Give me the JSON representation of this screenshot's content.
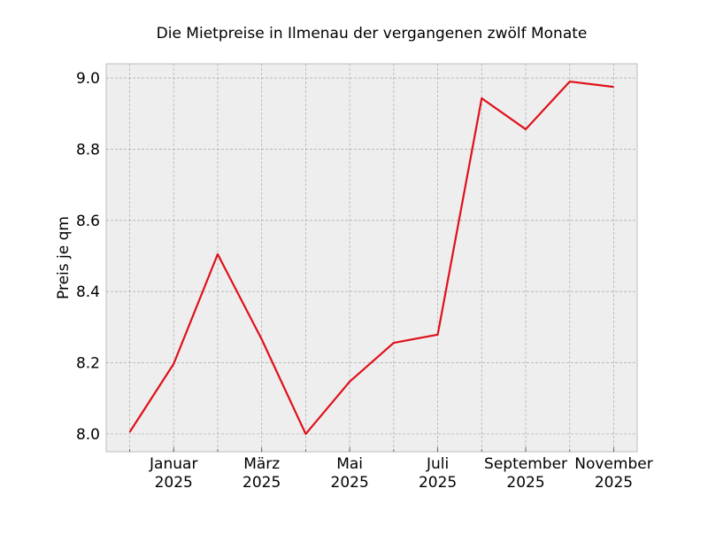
{
  "chart_data": {
    "type": "line",
    "title": "Die Mietpreise in Ilmenau der vergangenen zwölf Monate",
    "xlabel": "",
    "ylabel": "Preis je qm",
    "x": [
      "2024-12",
      "2025-01",
      "2025-02",
      "2025-03",
      "2025-04",
      "2025-05",
      "2025-06",
      "2025-07",
      "2025-08",
      "2025-09",
      "2025-10",
      "2025-11"
    ],
    "series": [
      {
        "values": [
          8.005,
          8.197,
          8.505,
          8.266,
          8.0,
          8.147,
          8.256,
          8.279,
          8.943,
          8.856,
          8.99,
          8.975
        ],
        "color": "#e0101a"
      }
    ],
    "xticks": [
      {
        "x": "2025-01",
        "label": [
          "Januar",
          "2025"
        ]
      },
      {
        "x": "2025-03",
        "label": [
          "März",
          "2025"
        ]
      },
      {
        "x": "2025-05",
        "label": [
          "Mai",
          "2025"
        ]
      },
      {
        "x": "2025-07",
        "label": [
          "Juli",
          "2025"
        ]
      },
      {
        "x": "2025-09",
        "label": [
          "September",
          "2025"
        ]
      },
      {
        "x": "2025-11",
        "label": [
          "November",
          "2025"
        ]
      }
    ],
    "yticks": [
      "8.0",
      "8.2",
      "8.4",
      "8.6",
      "8.8",
      "9.0"
    ],
    "ylim": [
      7.95,
      9.04
    ],
    "xlim": [
      "2024-11-15",
      "2025-11-17"
    ],
    "grid": true,
    "background": "#eeeeee"
  }
}
